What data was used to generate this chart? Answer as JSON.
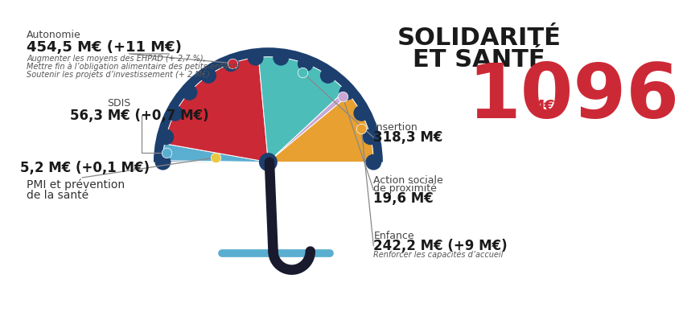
{
  "title_line1": "SOLIDARITÉ",
  "title_line2": "ET SANTÉ",
  "total": "1096",
  "total_unit": "M€",
  "bg_color": "#FFFFFF",
  "text_color": "#1a1a1a",
  "red_color": "#cc2936",
  "segments_ordered": [
    {
      "label": "PMI",
      "amount": 5.2,
      "color": "#1c3f6e"
    },
    {
      "label": "SDIS",
      "amount": 56.3,
      "color": "#5aaed0"
    },
    {
      "label": "Autonomie",
      "amount": 454.5,
      "color": "#cc2936"
    },
    {
      "label": "Insertion",
      "amount": 318.3,
      "color": "#4dbdba"
    },
    {
      "label": "Action",
      "amount": 19.6,
      "color": "#c9a8d4"
    },
    {
      "label": "Enfance",
      "amount": 242.2,
      "color": "#e8a030"
    }
  ],
  "umbrella_navy": "#1c3f6e",
  "umbrella_sky": "#4dbdba",
  "handle_color": "#1a1a2e",
  "ground_color": "#5aaed0",
  "label_autonomie": "Autonomie",
  "val_autonomie": "454,5 M€ (+11 M€)",
  "sub_autonomie_1": "Augmenter les moyens des EHPAD (+ 2,7 %),",
  "sub_autonomie_2": "Mettre fin à l’obligation alimentaire des petits-enfants",
  "sub_autonomie_3": "Soutenir les projets d’investissement (+ 2 M€)",
  "label_sdis": "SDIS",
  "val_sdis": "56,3 M€ (+0,7 M€)",
  "label_pmi": "PMI et prévention\nde la santé",
  "val_pmi_bold": "5,2 M€ (+0,1 M€)",
  "label_insertion": "Insertion",
  "val_insertion": "318,3 M€",
  "label_action": "Action sociale\nde proximité",
  "val_action": "19,6 M€",
  "label_enfance": "Enfance",
  "val_enfance": "242,2 M€ (+9 M€)",
  "sub_enfance": "Renforcer les capacités d’accueil",
  "dot_red": "#cc2936",
  "dot_blue": "#5aaed0",
  "dot_yellow": "#e8c840",
  "dot_teal": "#4dbdba",
  "dot_lavender": "#c9a8d4",
  "dot_gold": "#e8a030"
}
